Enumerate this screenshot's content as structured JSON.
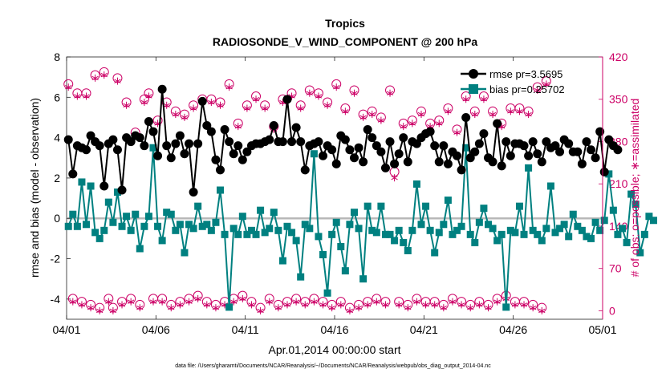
{
  "chart_data": {
    "type": "line",
    "title": "Tropics",
    "subtitle": "RADIOSONDE_V_WIND_COMPONENT @ 200 hPa",
    "xlabel": "Apr.01,2014 00:00:00 start",
    "ylabel_left": "rmse and bias (model - observation)",
    "ylabel_right": "# of obs: o=possible; ∗=assimilated",
    "xlim": [
      0,
      30
    ],
    "ylim_left": [
      -5,
      8
    ],
    "ylim_right": [
      -14,
      420
    ],
    "x_ticks": [
      0,
      5,
      10,
      15,
      20,
      25,
      30
    ],
    "x_tick_labels": [
      "04/01",
      "04/06",
      "04/11",
      "04/16",
      "04/21",
      "04/26",
      "05/01"
    ],
    "y_ticks_left": [
      -4,
      -2,
      0,
      2,
      4,
      6,
      8
    ],
    "y_tick_labels_left": [
      "-4",
      "-2",
      "0",
      "2",
      "4",
      "6",
      "8"
    ],
    "y_ticks_right": [
      0,
      70,
      140,
      210,
      280,
      350,
      420
    ],
    "y_tick_labels_right": [
      "0",
      "70",
      "140",
      "210",
      "280",
      "350",
      "420"
    ],
    "zero_line": 0,
    "grid": false,
    "legend_position": "top-right",
    "x_step_days": 0.25,
    "series": [
      {
        "name": "rmse pr=3.5695",
        "axis": "left",
        "color": "#000000",
        "marker": "circle",
        "values": [
          3.9,
          2.2,
          3.6,
          3.5,
          3.4,
          4.1,
          3.8,
          3.6,
          1.6,
          3.7,
          3.9,
          3.4,
          1.4,
          4.0,
          3.8,
          4.1,
          4.0,
          3.6,
          4.8,
          4.3,
          3.1,
          6.4,
          3.6,
          3.0,
          3.7,
          4.1,
          3.2,
          3.7,
          1.3,
          3.7,
          5.8,
          4.6,
          4.3,
          2.9,
          2.4,
          4.4,
          3.8,
          3.2,
          3.6,
          2.9,
          3.3,
          3.6,
          3.7,
          3.7,
          3.8,
          3.9,
          4.6,
          3.8,
          3.8,
          5.9,
          3.8,
          4.5,
          3.8,
          2.4,
          3.6,
          3.7,
          3.8,
          3.1,
          3.6,
          3.4,
          2.7,
          4.1,
          3.9,
          3.4,
          3.0,
          3.5,
          2.8,
          4.4,
          4.0,
          3.6,
          3.3,
          2.5,
          3.8,
          2.7,
          3.2,
          4.0,
          2.8,
          3.8,
          3.7,
          4.0,
          4.2,
          4.3,
          3.6,
          2.8,
          3.6,
          2.7,
          3.3,
          3.1,
          2.4,
          5.0,
          3.0,
          3.3,
          3.7,
          4.2,
          3.0,
          2.8,
          4.7,
          2.6,
          3.8,
          3.1,
          3.7,
          3.7,
          3.6,
          3.1,
          3.8,
          3.2,
          2.8,
          3.8,
          3.5,
          3.6,
          3.3,
          3.9,
          3.7,
          3.3,
          3.3,
          2.7,
          3.8,
          3.4,
          3.0,
          4.3,
          2.3,
          3.9,
          3.6,
          3.4
        ]
      },
      {
        "name": "bias pr=0.25702",
        "axis": "left",
        "color": "#008080",
        "marker": "square",
        "values": [
          -0.4,
          0.2,
          -0.4,
          1.8,
          -0.3,
          1.6,
          -0.7,
          -1.0,
          -0.6,
          0.8,
          -0.2,
          1.3,
          -0.4,
          0.1,
          -0.6,
          0.2,
          -1.5,
          -0.4,
          0.1,
          3.5,
          -0.4,
          -1.1,
          0.3,
          0.2,
          -0.6,
          -0.3,
          -1.7,
          -0.3,
          -0.5,
          0.6,
          -0.4,
          -0.3,
          -0.6,
          -0.2,
          1.4,
          -0.8,
          -4.4,
          -0.5,
          -0.8,
          0.1,
          -0.8,
          -0.6,
          -0.8,
          0.4,
          -0.7,
          -0.5,
          0.3,
          -0.6,
          -2.1,
          -0.4,
          -0.7,
          -1.1,
          -2.9,
          -0.3,
          -0.5,
          3.2,
          -0.9,
          -1.8,
          -3.7,
          -0.8,
          -0.2,
          -1.4,
          -2.6,
          -0.3,
          0.3,
          -0.5,
          -3.0,
          0.6,
          -0.6,
          -0.7,
          0.6,
          -0.8,
          -0.8,
          -1.1,
          -0.6,
          -1.2,
          -1.6,
          -0.6,
          1.7,
          -0.3,
          0.6,
          -0.6,
          -1.7,
          -0.7,
          -0.3,
          0.9,
          -0.8,
          -0.6,
          -0.4,
          3.5,
          -0.8,
          -1.2,
          -0.2,
          0.5,
          -0.3,
          -0.5,
          -1.1,
          -0.8,
          -4.4,
          -0.6,
          -0.7,
          0.6,
          -0.8,
          2.5,
          -0.6,
          -0.8,
          -1.1,
          -0.5,
          1.6,
          -0.7,
          -0.5,
          -0.3,
          -0.9,
          0.2,
          -0.4,
          -0.6,
          -0.9,
          -1.0,
          -0.2,
          -0.6,
          -0.1,
          2.2,
          0.4,
          -0.8,
          -0.5,
          -1.2,
          1.2,
          0.7,
          -1.7,
          -0.8,
          0.1,
          -0.1
        ]
      },
      {
        "name": "# of obs possible",
        "axis": "right",
        "color": "#cc0066",
        "marker": "open-circle",
        "values": [
          375,
          20,
          360,
          15,
          360,
          10,
          390,
          5,
          395,
          20,
          5,
          385,
          15,
          345,
          20,
          295,
          10,
          350,
          360,
          20,
          315,
          20,
          345,
          10,
          330,
          15,
          325,
          20,
          340,
          25,
          350,
          15,
          350,
          10,
          345,
          15,
          375,
          20,
          310,
          25,
          340,
          15,
          355,
          5,
          340,
          20,
          305,
          10,
          350,
          15,
          360,
          20,
          340,
          15,
          365,
          20,
          360,
          15,
          345,
          10,
          375,
          15,
          335,
          5,
          365,
          10,
          325,
          15,
          330,
          20,
          320,
          15,
          365,
          230,
          15,
          310,
          10,
          315,
          20,
          330,
          15,
          310,
          15,
          315,
          10,
          335,
          20,
          300,
          15,
          355,
          10,
          330,
          15,
          355,
          10,
          330,
          20,
          310,
          25,
          335,
          15,
          335,
          15,
          330,
          10,
          370,
          5,
          380
        ]
      },
      {
        "name": "# of obs assimilated",
        "axis": "right",
        "color": "#cc0066",
        "marker": "asterisk",
        "values": [
          370,
          15,
          355,
          10,
          355,
          5,
          385,
          0,
          390,
          15,
          0,
          380,
          10,
          340,
          15,
          290,
          5,
          345,
          355,
          15,
          310,
          15,
          340,
          5,
          325,
          10,
          320,
          15,
          335,
          20,
          345,
          10,
          345,
          5,
          340,
          10,
          370,
          15,
          305,
          20,
          335,
          10,
          350,
          0,
          335,
          15,
          300,
          5,
          345,
          10,
          355,
          15,
          335,
          10,
          360,
          15,
          355,
          10,
          340,
          5,
          370,
          10,
          330,
          0,
          360,
          5,
          320,
          10,
          325,
          15,
          315,
          10,
          360,
          220,
          10,
          305,
          5,
          310,
          15,
          325,
          10,
          305,
          10,
          310,
          5,
          330,
          15,
          295,
          10,
          350,
          5,
          325,
          10,
          350,
          5,
          325,
          15,
          305,
          20,
          330,
          10,
          330,
          10,
          325,
          5,
          365,
          0,
          375
        ]
      }
    ],
    "footnote": "data file: /Users/gharamti/Documents/NCAR/Reanalysis/~/Documents/NCAR/Reanalysis/webpub/obs_diag_output_2014-04.nc"
  }
}
